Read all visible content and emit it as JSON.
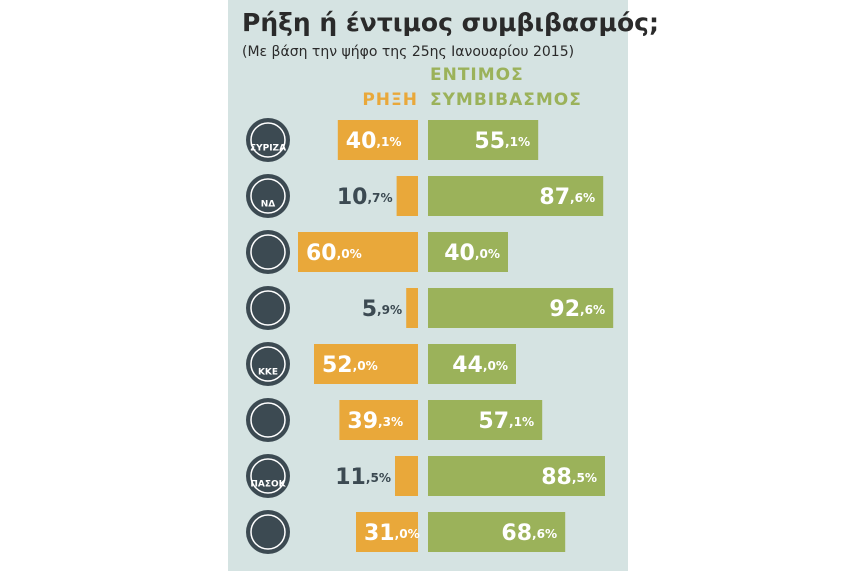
{
  "chart_data": {
    "type": "diverging-bar",
    "title": "Ρήξη ή έντιμος συμβιβασμός;",
    "subtitle": "(Με βάση την ψήφο της 25ης Ιανουαρίου 2015)",
    "categories": [
      "ΣΥΡΙΖΑ",
      "ΝΔ",
      null,
      null,
      "ΚΚΕ",
      null,
      "ΠΑΣΟΚ",
      null
    ],
    "series": [
      {
        "name": "ΡΗΞΗ",
        "color": "#e9a83a",
        "side": "left",
        "values": [
          40.1,
          10.7,
          60.0,
          5.9,
          52.0,
          39.3,
          11.5,
          31.0
        ],
        "value_labels": [
          "40,1%",
          "10,7%",
          "60,0%",
          "5,9%",
          "52,0%",
          "39,3%",
          "11,5%",
          "31,0%"
        ]
      },
      {
        "name": "ΕΝΤΙΜΟΣ ΣΥΜΒΙΒΑΣΜΟΣ",
        "color": "#9bb25a",
        "side": "right",
        "values": [
          55.1,
          87.6,
          40.0,
          92.6,
          44.0,
          57.1,
          88.5,
          68.6
        ],
        "value_labels": [
          "55,1%",
          "87,6%",
          "40,0%",
          "92,6%",
          "44,0%",
          "57,1%",
          "88,5%",
          "68,6%"
        ]
      }
    ]
  }
}
